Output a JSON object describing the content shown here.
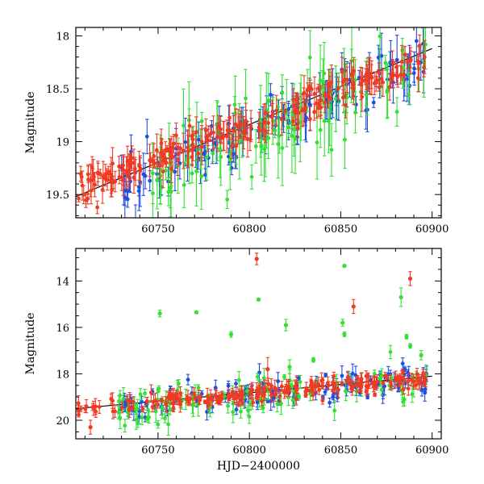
{
  "chart_data": [
    {
      "type": "scatter",
      "panel": "top",
      "xlabel": "",
      "ylabel": "Magnitude",
      "xlim": [
        60705,
        60905
      ],
      "ylim": [
        19.72,
        17.92
      ],
      "y_inverted": true,
      "x_ticks": [
        60750,
        60800,
        60850,
        60900
      ],
      "x_tick_labels": [
        "60750",
        "60800",
        "60850",
        "60900"
      ],
      "y_ticks": [
        18,
        18.5,
        19,
        19.5
      ],
      "y_tick_labels": [
        "18",
        "18.5",
        "19",
        "19.5"
      ],
      "trend_line": {
        "x": [
          60705,
          60900
        ],
        "y": [
          19.52,
          18.12
        ],
        "color": "#000000"
      },
      "series": [
        {
          "color": "#1f4fe0",
          "x_range": [
            60728,
            60897
          ],
          "y_trend": [
            19.45,
            18.2
          ],
          "scatter": 0.12,
          "errorbar": 0.14,
          "count": 140,
          "seed": 11
        },
        {
          "color": "#33e033",
          "x_range": [
            60745,
            60897
          ],
          "y_trend": [
            19.38,
            18.22
          ],
          "scatter": 0.2,
          "errorbar": 0.22,
          "count": 110,
          "seed": 23
        },
        {
          "color": "#f03a22",
          "x_range": [
            60706,
            60897
          ],
          "y_trend": [
            19.45,
            18.2
          ],
          "scatter": 0.08,
          "errorbar": 0.1,
          "count": 230,
          "seed": 37
        }
      ],
      "grid": false,
      "legend": false
    },
    {
      "type": "scatter",
      "panel": "bottom",
      "xlabel": "HJD−2400000",
      "ylabel": "Magnitude",
      "xlim": [
        60705,
        60905
      ],
      "ylim": [
        20.8,
        12.6
      ],
      "y_inverted": true,
      "x_ticks": [
        60750,
        60800,
        60850,
        60900
      ],
      "x_tick_labels": [
        "60750",
        "60800",
        "60850",
        "60900"
      ],
      "y_ticks": [
        14,
        16,
        18,
        20
      ],
      "y_tick_labels": [
        "14",
        "16",
        "18",
        "20"
      ],
      "trend_line": {
        "x": [
          60705,
          60900
        ],
        "y": [
          19.5,
          18.1
        ],
        "color": "#000000"
      },
      "series": [
        {
          "color": "#1f4fe0",
          "x_range": [
            60728,
            60897
          ],
          "y_trend": [
            19.5,
            18.2
          ],
          "scatter": 0.3,
          "errorbar": 0.25,
          "count": 130,
          "seed": 51
        },
        {
          "color": "#33e033",
          "x_range": [
            60728,
            60897
          ],
          "y_trend": [
            19.6,
            18.3
          ],
          "scatter": 0.45,
          "errorbar": 0.3,
          "count": 110,
          "seed": 63
        },
        {
          "color": "#f03a22",
          "x_range": [
            60706,
            60897
          ],
          "y_trend": [
            19.5,
            18.2
          ],
          "scatter": 0.18,
          "errorbar": 0.2,
          "count": 220,
          "seed": 77
        }
      ],
      "outliers": [
        {
          "x": 60751,
          "y": 15.4,
          "err": 0.15,
          "color": "#33e033"
        },
        {
          "x": 60771,
          "y": 15.35,
          "err": 0.05,
          "color": "#33e033"
        },
        {
          "x": 60790,
          "y": 16.3,
          "err": 0.12,
          "color": "#33e033"
        },
        {
          "x": 60805,
          "y": 14.8,
          "err": 0.05,
          "color": "#33e033"
        },
        {
          "x": 60804,
          "y": 13.05,
          "err": 0.25,
          "color": "#f03a22"
        },
        {
          "x": 60820,
          "y": 15.9,
          "err": 0.25,
          "color": "#33e033"
        },
        {
          "x": 60835,
          "y": 17.4,
          "err": 0.1,
          "color": "#33e033"
        },
        {
          "x": 60852,
          "y": 13.35,
          "err": 0.05,
          "color": "#33e033"
        },
        {
          "x": 60851,
          "y": 15.8,
          "err": 0.15,
          "color": "#33e033"
        },
        {
          "x": 60852,
          "y": 16.3,
          "err": 0.1,
          "color": "#33e033"
        },
        {
          "x": 60857,
          "y": 15.1,
          "err": 0.3,
          "color": "#f03a22"
        },
        {
          "x": 60883,
          "y": 14.7,
          "err": 0.4,
          "color": "#33e033"
        },
        {
          "x": 60886,
          "y": 16.4,
          "err": 0.1,
          "color": "#33e033"
        },
        {
          "x": 60888,
          "y": 13.9,
          "err": 0.3,
          "color": "#f03a22"
        },
        {
          "x": 60888,
          "y": 16.8,
          "err": 0.1,
          "color": "#33e033"
        },
        {
          "x": 60894,
          "y": 17.2,
          "err": 0.2,
          "color": "#33e033"
        },
        {
          "x": 60810,
          "y": 17.8,
          "err": 0.5,
          "color": "#f03a22"
        },
        {
          "x": 60822,
          "y": 17.7,
          "err": 0.3,
          "color": "#33e033"
        },
        {
          "x": 60713,
          "y": 20.3,
          "err": 0.3,
          "color": "#f03a22"
        }
      ],
      "grid": false,
      "legend": false
    }
  ]
}
